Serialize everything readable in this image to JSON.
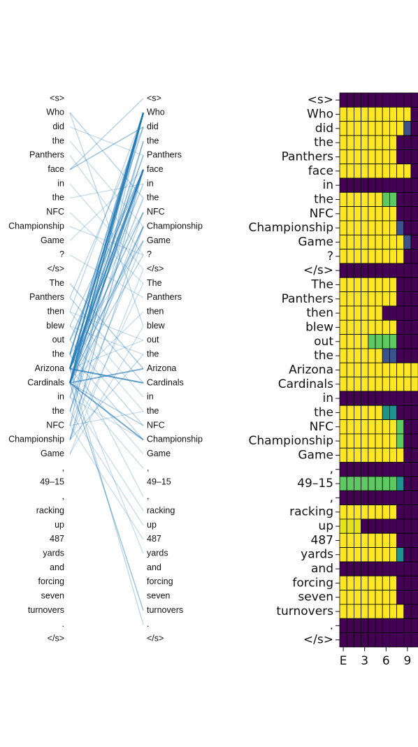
{
  "tokens": [
    "<s>",
    "Who",
    "did",
    "the",
    "Panthers",
    "face",
    "in",
    "the",
    "NFC",
    "Championship",
    "Game",
    "?",
    "</s>",
    "The",
    "Panthers",
    "then",
    "blew",
    "out",
    "the",
    "Arizona",
    "Cardinals",
    "in",
    "the",
    "NFC",
    "Championship",
    "Game",
    ",",
    "49–15",
    ",",
    "racking",
    "up",
    "487",
    "yards",
    "and",
    "forcing",
    "seven",
    "turnovers",
    ".",
    "</s>"
  ],
  "xticks": [
    "E",
    "3",
    "6",
    "9"
  ],
  "colors": {
    "purple": "#440154",
    "yellow": "#fde725",
    "green": "#5ec962",
    "teal": "#21918c",
    "slate": "#3b528b",
    "light_yellow": "#e5e419",
    "link": "#1f77b4"
  },
  "chart_data": {
    "type": "heatmap",
    "columns": [
      "E",
      "1",
      "2",
      "3",
      "4",
      "5",
      "6",
      "7",
      "8",
      "9",
      "10"
    ],
    "value_codes": {
      "P": "purple",
      "Y": "yellow",
      "G": "green",
      "T": "teal",
      "S": "slate",
      "L": "light-yellow"
    },
    "rows": [
      "PPPPPPPPPPP",
      "YYYYYYYYYYP",
      "YYYYYYYYYSP",
      "YYYYYYYYPPP",
      "YYYYYYYYPPP",
      "YYYYYYYYYYP",
      "PPPPPPPPPPP",
      "YYYYYYGGPPP",
      "YYYYYYYYPPP",
      "YYYYYYYYSPP",
      "YYYYYYYYYSP",
      "YYYYYYYYYPP",
      "PPPPPPPPPPP",
      "YYYYYYYYPPP",
      "YYYYYYYYPPP",
      "YYYYYYPPPPP",
      "YYYYYYYYPPP",
      "YYYYGGGGPPP",
      "YYYYYYSSPPP",
      "YYYYYYYYYYY",
      "YYYYYYYYYYY",
      "PPPPPPPPPPP",
      "YYYYYYTTPPP",
      "YYYYYYYYGPP",
      "YYYYYYYYGPP",
      "YYYYYYYYYPP",
      "PPPPPPPPPPP",
      "GGGGGGGGTPP",
      "PPPPPPPPPPP",
      "YYYYYYYYPPP",
      "LLLPPPPPPPP",
      "YYYYYYYYPPP",
      "YYYYYYYYTPP",
      "PPPPPPPPPPP",
      "YYYYYYYYPPP",
      "YYYYYYYYPPP",
      "YYYYYYYYYPP",
      "PPPPPPPPPPP",
      "PPPPPPPPPPP"
    ]
  },
  "links": [
    [
      1,
      7,
      0.3
    ],
    [
      1,
      16,
      0.25
    ],
    [
      2,
      4,
      0.2
    ],
    [
      3,
      9,
      0.2
    ],
    [
      4,
      11,
      0.2
    ],
    [
      5,
      2,
      0.4
    ],
    [
      5,
      0,
      0.3
    ],
    [
      6,
      12,
      0.2
    ],
    [
      7,
      6,
      0.2
    ],
    [
      8,
      13,
      0.2
    ],
    [
      9,
      11,
      0.2
    ],
    [
      10,
      5,
      0.2
    ],
    [
      11,
      14,
      0.2
    ],
    [
      13,
      19,
      0.35
    ],
    [
      14,
      20,
      0.3
    ],
    [
      15,
      17,
      0.2
    ],
    [
      16,
      18,
      0.2
    ],
    [
      17,
      8,
      0.2
    ],
    [
      18,
      10,
      0.2
    ],
    [
      20,
      23,
      0.35
    ],
    [
      21,
      24,
      0.2
    ],
    [
      22,
      3,
      0.2
    ],
    [
      23,
      22,
      0.2
    ],
    [
      24,
      9,
      0.3
    ],
    [
      25,
      12,
      0.2
    ],
    [
      19,
      1,
      0.95
    ],
    [
      19,
      5,
      0.85
    ],
    [
      20,
      1,
      0.9
    ],
    [
      20,
      5,
      0.8
    ],
    [
      19,
      20,
      0.75
    ],
    [
      20,
      24,
      0.65
    ],
    [
      20,
      19,
      0.6
    ],
    [
      18,
      1,
      0.6
    ],
    [
      19,
      4,
      0.5
    ],
    [
      20,
      9,
      0.5
    ],
    [
      19,
      8,
      0.45
    ],
    [
      20,
      3,
      0.45
    ],
    [
      18,
      2,
      0.4
    ],
    [
      17,
      5,
      0.45
    ],
    [
      19,
      6,
      0.35
    ],
    [
      20,
      7,
      0.35
    ],
    [
      19,
      10,
      0.3
    ],
    [
      20,
      11,
      0.3
    ],
    [
      21,
      1,
      0.3
    ],
    [
      22,
      5,
      0.3
    ],
    [
      23,
      1,
      0.35
    ],
    [
      24,
      5,
      0.4
    ],
    [
      16,
      5,
      0.3
    ],
    [
      15,
      1,
      0.25
    ],
    [
      14,
      2,
      0.25
    ],
    [
      22,
      8,
      0.25
    ],
    [
      21,
      9,
      0.25
    ],
    [
      23,
      10,
      0.25
    ],
    [
      24,
      13,
      0.2
    ],
    [
      20,
      15,
      0.2
    ],
    [
      19,
      17,
      0.2
    ],
    [
      17,
      23,
      0.25
    ],
    [
      18,
      24,
      0.25
    ],
    [
      16,
      22,
      0.2
    ],
    [
      15,
      21,
      0.2
    ],
    [
      19,
      32,
      0.2
    ],
    [
      20,
      36,
      0.4
    ],
    [
      19,
      37,
      0.25
    ],
    [
      21,
      29,
      0.2
    ],
    [
      22,
      30,
      0.2
    ],
    [
      23,
      31,
      0.2
    ],
    [
      20,
      26,
      0.2
    ],
    [
      19,
      25,
      0.2
    ],
    [
      18,
      28,
      0.2
    ],
    [
      24,
      18,
      0.25
    ],
    [
      25,
      16,
      0.2
    ]
  ]
}
